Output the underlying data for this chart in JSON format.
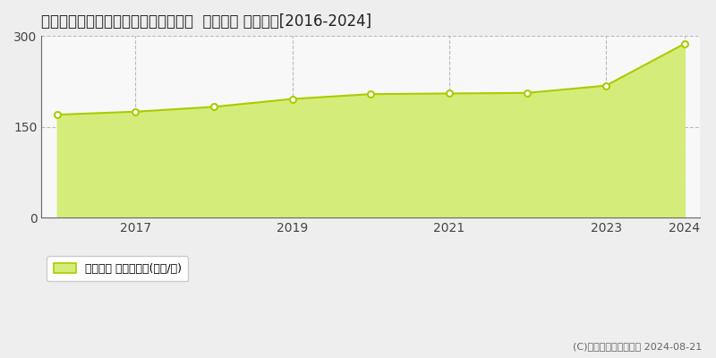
{
  "title": "東京都目黒区大岡山１丁目８６番１８  地価公示 地価推移[2016-2024]",
  "years": [
    2016,
    2017,
    2018,
    2019,
    2020,
    2021,
    2022,
    2023,
    2024
  ],
  "values": [
    170,
    175,
    183,
    196,
    204,
    205,
    206,
    218,
    287
  ],
  "ylim": [
    0,
    300
  ],
  "yticks": [
    0,
    150,
    300
  ],
  "xticks": [
    2017,
    2019,
    2021,
    2023,
    2024
  ],
  "line_color": "#aacc00",
  "fill_color": "#d4ed7a",
  "marker_color": "#ffffff",
  "marker_edge_color": "#aacc00",
  "bg_color": "#ffffff",
  "plot_bg_color": "#f8f8f8",
  "grid_color": "#bbbbbb",
  "legend_label": "地価公示 平均坪単価(万円/坪)",
  "copyright_text": "(C)土地価格ドットコム 2024-08-21",
  "title_fontsize": 12,
  "tick_fontsize": 10,
  "legend_fontsize": 9,
  "fig_bg_color": "#eeeeee"
}
